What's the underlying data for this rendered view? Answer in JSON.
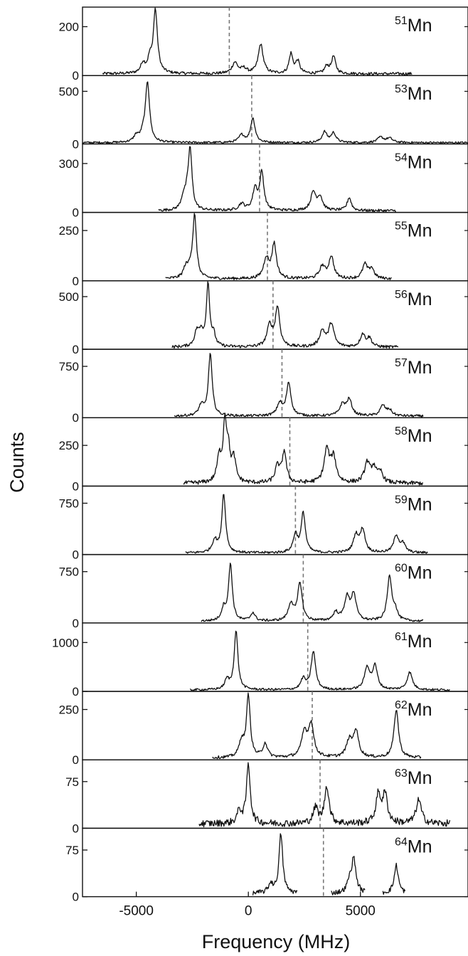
{
  "chart_data": {
    "type": "line",
    "title": "",
    "xlabel": "Frequency (MHz)",
    "ylabel": "Counts",
    "xlim": [
      -7400,
      9800
    ],
    "x_ticks": [
      -5000,
      0,
      5000
    ],
    "x_tick_labels": [
      "-5000",
      "0",
      "5000"
    ],
    "grid": false,
    "legend": "none",
    "line_color": "#111111",
    "centroid_line_color": "#777777",
    "panels": [
      {
        "isotope_mass": "51",
        "element": "Mn",
        "ylim": [
          0,
          280
        ],
        "yticks": [
          0,
          200
        ],
        "ytick_labels": [
          "0",
          "200"
        ],
        "centroid": -850,
        "x_range": [
          -6500,
          7300
        ],
        "peaks": [
          [
            -4150,
            260,
            110
          ],
          [
            -4700,
            40,
            120
          ],
          [
            -4400,
            50,
            100
          ],
          [
            -600,
            45,
            150
          ],
          [
            -200,
            20,
            150
          ],
          [
            550,
            120,
            130
          ],
          [
            1900,
            80,
            100
          ],
          [
            2200,
            50,
            110
          ],
          [
            3500,
            30,
            110
          ],
          [
            3800,
            70,
            110
          ]
        ],
        "noise": 7
      },
      {
        "isotope_mass": "53",
        "element": "Mn",
        "ylim": [
          0,
          650
        ],
        "yticks": [
          0,
          500
        ],
        "ytick_labels": [
          "0",
          "500"
        ],
        "centroid": 150,
        "x_range": [
          -7400,
          9800
        ],
        "peaks": [
          [
            -4500,
            570,
            110
          ],
          [
            -5000,
            60,
            130
          ],
          [
            -4700,
            60,
            120
          ],
          [
            -300,
            70,
            150
          ],
          [
            200,
            230,
            120
          ],
          [
            3400,
            100,
            130
          ],
          [
            3800,
            90,
            130
          ],
          [
            5900,
            50,
            160
          ],
          [
            6300,
            40,
            160
          ]
        ],
        "noise": 12
      },
      {
        "isotope_mass": "54",
        "element": "Mn",
        "ylim": [
          0,
          420
        ],
        "yticks": [
          0,
          300
        ],
        "ytick_labels": [
          "0",
          "300"
        ],
        "centroid": 500,
        "x_range": [
          -4000,
          6600
        ],
        "peaks": [
          [
            -2600,
            370,
            100
          ],
          [
            -2900,
            70,
            120
          ],
          [
            -2750,
            60,
            100
          ],
          [
            -300,
            40,
            150
          ],
          [
            300,
            130,
            120
          ],
          [
            600,
            230,
            110
          ],
          [
            2900,
            110,
            140
          ],
          [
            3200,
            80,
            130
          ],
          [
            4500,
            80,
            110
          ]
        ],
        "noise": 10
      },
      {
        "isotope_mass": "55",
        "element": "Mn",
        "ylim": [
          0,
          340
        ],
        "yticks": [
          0,
          250
        ],
        "ytick_labels": [
          "0",
          "250"
        ],
        "centroid": 850,
        "x_range": [
          -3700,
          6400
        ],
        "peaks": [
          [
            -2400,
            310,
            100
          ],
          [
            -2800,
            50,
            120
          ],
          [
            -2600,
            40,
            110
          ],
          [
            800,
            100,
            140
          ],
          [
            1150,
            170,
            120
          ],
          [
            3300,
            60,
            150
          ],
          [
            3700,
            110,
            130
          ],
          [
            5200,
            70,
            130
          ],
          [
            5500,
            50,
            130
          ]
        ],
        "noise": 9
      },
      {
        "isotope_mass": "56",
        "element": "Mn",
        "ylim": [
          0,
          650
        ],
        "yticks": [
          0,
          500
        ],
        "ytick_labels": [
          "0",
          "500"
        ],
        "centroid": 1100,
        "x_range": [
          -3400,
          6700
        ],
        "peaks": [
          [
            -1800,
            590,
            90
          ],
          [
            -2300,
            140,
            120
          ],
          [
            -2100,
            120,
            110
          ],
          [
            -1550,
            100,
            100
          ],
          [
            950,
            200,
            140
          ],
          [
            1300,
            370,
            120
          ],
          [
            3300,
            150,
            150
          ],
          [
            3700,
            220,
            140
          ],
          [
            5100,
            120,
            130
          ],
          [
            5400,
            80,
            130
          ]
        ],
        "noise": 18
      },
      {
        "isotope_mass": "57",
        "element": "Mn",
        "ylim": [
          0,
          1000
        ],
        "yticks": [
          0,
          750
        ],
        "ytick_labels": [
          "0",
          "750"
        ],
        "centroid": 1500,
        "x_range": [
          -3300,
          7800
        ],
        "peaks": [
          [
            -1700,
            910,
            100
          ],
          [
            -2100,
            150,
            130
          ],
          [
            1400,
            180,
            140
          ],
          [
            1800,
            480,
            120
          ],
          [
            4200,
            160,
            150
          ],
          [
            4500,
            230,
            140
          ],
          [
            6000,
            150,
            140
          ],
          [
            6300,
            80,
            140
          ]
        ],
        "noise": 22
      },
      {
        "isotope_mass": "58",
        "element": "Mn",
        "ylim": [
          0,
          420
        ],
        "yticks": [
          0,
          250
        ],
        "ytick_labels": [
          "0",
          "250"
        ],
        "centroid": 1850,
        "x_range": [
          -2900,
          7800
        ],
        "peaks": [
          [
            -1050,
            340,
            90
          ],
          [
            -1300,
            150,
            120
          ],
          [
            -900,
            180,
            100
          ],
          [
            -650,
            140,
            110
          ],
          [
            1300,
            100,
            130
          ],
          [
            1600,
            190,
            110
          ],
          [
            3500,
            200,
            140
          ],
          [
            3800,
            150,
            140
          ],
          [
            5300,
            120,
            140
          ],
          [
            5600,
            90,
            140
          ],
          [
            5900,
            60,
            130
          ]
        ],
        "noise": 16
      },
      {
        "isotope_mass": "59",
        "element": "Mn",
        "ylim": [
          0,
          1000
        ],
        "yticks": [
          0,
          750
        ],
        "ytick_labels": [
          "0",
          "750"
        ],
        "centroid": 2100,
        "x_range": [
          -2800,
          8000
        ],
        "peaks": [
          [
            -1100,
            860,
            100
          ],
          [
            -1500,
            180,
            130
          ],
          [
            2100,
            260,
            120
          ],
          [
            2450,
            580,
            110
          ],
          [
            4800,
            250,
            140
          ],
          [
            5100,
            330,
            130
          ],
          [
            6600,
            250,
            140
          ],
          [
            6900,
            120,
            130
          ]
        ],
        "noise": 22
      },
      {
        "isotope_mass": "60",
        "element": "Mn",
        "ylim": [
          0,
          1000
        ],
        "yticks": [
          0,
          750
        ],
        "ytick_labels": [
          "0",
          "750"
        ],
        "centroid": 2450,
        "x_range": [
          -2100,
          7800
        ],
        "peaks": [
          [
            -800,
            830,
            100
          ],
          [
            -1100,
            180,
            120
          ],
          [
            200,
            120,
            120
          ],
          [
            1900,
            250,
            140
          ],
          [
            2300,
            550,
            120
          ],
          [
            3900,
            120,
            140
          ],
          [
            4400,
            330,
            140
          ],
          [
            4700,
            380,
            130
          ],
          [
            6300,
            650,
            120
          ],
          [
            6550,
            140,
            120
          ]
        ],
        "noise": 22
      },
      {
        "isotope_mass": "61",
        "element": "Mn",
        "ylim": [
          0,
          1400
        ],
        "yticks": [
          0,
          1000
        ],
        "ytick_labels": [
          "0",
          "1000"
        ],
        "centroid": 2650,
        "x_range": [
          -2600,
          9000
        ],
        "peaks": [
          [
            -550,
            1200,
            100
          ],
          [
            -950,
            200,
            120
          ],
          [
            2450,
            220,
            130
          ],
          [
            2900,
            780,
            120
          ],
          [
            5300,
            450,
            140
          ],
          [
            5650,
            470,
            130
          ],
          [
            7200,
            360,
            140
          ]
        ],
        "noise": 28
      },
      {
        "isotope_mass": "62",
        "element": "Mn",
        "ylim": [
          0,
          340
        ],
        "yticks": [
          0,
          250
        ],
        "ytick_labels": [
          "0",
          "250"
        ],
        "centroid": 2850,
        "x_range": [
          -1600,
          7700
        ],
        "peaks": [
          [
            0,
            305,
            100
          ],
          [
            -300,
            80,
            130
          ],
          [
            750,
            70,
            120
          ],
          [
            2500,
            120,
            150
          ],
          [
            2800,
            160,
            140
          ],
          [
            4500,
            80,
            150
          ],
          [
            4800,
            130,
            140
          ],
          [
            6600,
            240,
            120
          ]
        ],
        "noise": 9
      },
      {
        "isotope_mass": "63",
        "element": "Mn",
        "ylim": [
          0,
          110
        ],
        "yticks": [
          0,
          75
        ],
        "ytick_labels": [
          "0",
          "75"
        ],
        "centroid": 3200,
        "x_range": [
          -2200,
          9000
        ],
        "peaks": [
          [
            0,
            95,
            100
          ],
          [
            -400,
            20,
            120
          ],
          [
            3000,
            25,
            130
          ],
          [
            3500,
            60,
            120
          ],
          [
            5800,
            45,
            130
          ],
          [
            6100,
            45,
            130
          ],
          [
            7600,
            38,
            140
          ]
        ],
        "noise": 7
      },
      {
        "isotope_mass": "64",
        "element": "Mn",
        "ylim": [
          0,
          110
        ],
        "yticks": [
          0,
          75
        ],
        "ytick_labels": [
          "0",
          "75"
        ],
        "centroid": 3350,
        "x_range": [
          0,
          7000
        ],
        "segments": [
          [
            200,
            2200
          ],
          [
            3700,
            5200
          ],
          [
            6000,
            7000
          ]
        ],
        "peaks": [
          [
            1450,
            95,
            100
          ],
          [
            1000,
            15,
            120
          ],
          [
            4700,
            55,
            120
          ],
          [
            4500,
            15,
            110
          ],
          [
            6600,
            45,
            110
          ]
        ],
        "noise": 5
      }
    ]
  }
}
